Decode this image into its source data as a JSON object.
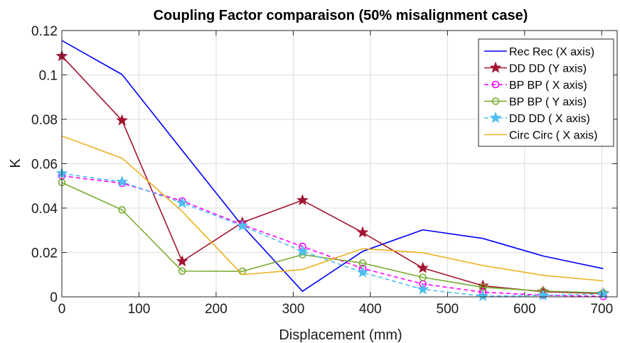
{
  "chart_data": {
    "type": "line",
    "title": "Coupling Factor comparaison (50% misalignment case)",
    "xlabel": "Displacement (mm)",
    "ylabel": "K",
    "xlim": [
      0,
      720
    ],
    "ylim": [
      0,
      0.12
    ],
    "xticks": [
      0,
      100,
      200,
      300,
      400,
      500,
      600,
      700
    ],
    "yticks": [
      0,
      0.02,
      0.04,
      0.06,
      0.08,
      0.1,
      0.12
    ],
    "xtick_labels": [
      "0",
      "100",
      "200",
      "300",
      "400",
      "500",
      "600",
      "700"
    ],
    "ytick_labels": [
      "0",
      "0.02",
      "0.04",
      "0.06",
      "0.08",
      "0.1",
      "0.12"
    ],
    "grid": true,
    "legend_position": "top-right",
    "x": [
      0,
      78,
      156,
      234,
      312,
      390,
      468,
      546,
      624,
      702
    ],
    "series": [
      {
        "name": "Rec Rec (X axis)",
        "color": "#0000ff",
        "dash": "solid",
        "marker": "none",
        "values": [
          0.1155,
          0.1002,
          0.066,
          0.032,
          0.0025,
          0.0205,
          0.0302,
          0.0263,
          0.0184,
          0.0127
        ]
      },
      {
        "name": "DD DD (Y axis)",
        "color": "#a2142f",
        "dash": "solid",
        "marker": "star",
        "values": [
          0.1085,
          0.0795,
          0.016,
          0.0335,
          0.0435,
          0.029,
          0.013,
          0.005,
          0.0023,
          0.0015
        ]
      },
      {
        "name": "BP BP ( X axis)",
        "color": "#ff00ff",
        "dash": "dashed",
        "marker": "circle",
        "values": [
          0.0545,
          0.0512,
          0.0432,
          0.0325,
          0.0227,
          0.0128,
          0.0058,
          0.0021,
          0.0007,
          0.0002
        ]
      },
      {
        "name": "BP BP ( Y axis)",
        "color": "#77ac30",
        "dash": "solid",
        "marker": "circle",
        "values": [
          0.0515,
          0.0392,
          0.0116,
          0.0115,
          0.019,
          0.0152,
          0.0088,
          0.0043,
          0.0026,
          0.0018
        ]
      },
      {
        "name": "DD DD ( X axis)",
        "color": "#4dbeee",
        "dash": "dashed",
        "marker": "star",
        "values": [
          0.0556,
          0.0518,
          0.0423,
          0.032,
          0.0205,
          0.011,
          0.0034,
          0.0003,
          0.0006,
          0.0013
        ]
      },
      {
        "name": "Circ Circ ( X axis)",
        "color": "#edb120",
        "dash": "solid",
        "marker": "none",
        "values": [
          0.0725,
          0.0625,
          0.0385,
          0.01,
          0.0123,
          0.0217,
          0.0199,
          0.0141,
          0.0097,
          0.0072
        ]
      }
    ]
  }
}
